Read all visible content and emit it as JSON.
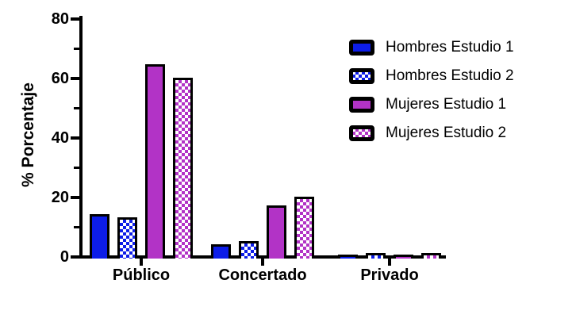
{
  "chart_data": {
    "type": "bar",
    "title": "",
    "xlabel": "",
    "ylabel": "% Porcentaje",
    "ylim": [
      0,
      80
    ],
    "yticks": [
      0,
      20,
      40,
      60,
      80
    ],
    "minor_yticks": [
      10,
      30,
      50,
      70
    ],
    "grid": false,
    "legend_position": "right-top",
    "categories": [
      "Público",
      "Concertado",
      "Privado"
    ],
    "series": [
      {
        "name": "Hombres Estudio 1",
        "color": "#0d1de8",
        "pattern": "solid",
        "values": [
          14,
          4,
          0.5
        ]
      },
      {
        "name": "Hombres Estudio 2",
        "color": "#0d1de8",
        "pattern": "checker",
        "values": [
          13,
          5,
          1
        ]
      },
      {
        "name": "Mujeres Estudio 1",
        "color": "#b233c6",
        "pattern": "solid",
        "values": [
          64.5,
          17,
          0.5
        ]
      },
      {
        "name": "Mujeres Estudio 2",
        "color": "#b233c6",
        "pattern": "checker",
        "values": [
          60,
          20,
          1
        ]
      }
    ]
  },
  "colors": {
    "axis": "#000000",
    "background": "#ffffff",
    "blue": "#0d1de8",
    "magenta": "#b233c6",
    "checker_background": "#ffffff"
  }
}
